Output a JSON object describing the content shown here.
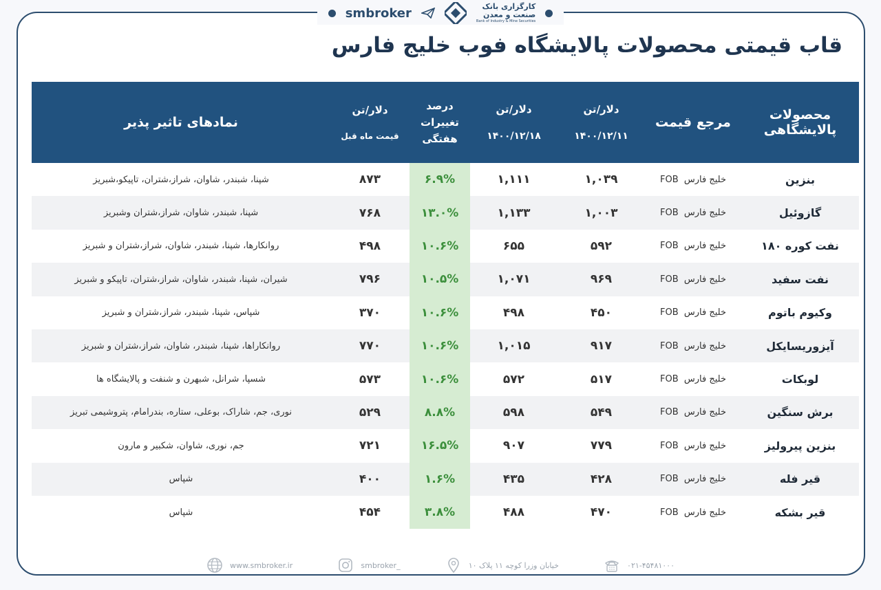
{
  "brand": {
    "name": "smbroker",
    "bank_name_line1": "کارگزاری بانک",
    "bank_name_line2": "صنعت و معدن",
    "bank_name_en": "Bank of Industry & Mine Securities"
  },
  "title": "قاب قیمتی محصولات پالایشگاه فوب خلیج فارس",
  "table": {
    "headers": {
      "product": "محصولات پالایشگاهی",
      "reference": "مرجع قیمت",
      "price1_unit": "دلار/تن",
      "price1_date": "۱۴۰۰/۱۲/۱۱",
      "price2_unit": "دلار/تن",
      "price2_date": "۱۴۰۰/۱۲/۱۸",
      "change_line1": "درصد",
      "change_line2": "تغییرات",
      "change_line3": "هفتگی",
      "prev_unit": "دلار/تن",
      "prev_label": "قیمت ماه قبل",
      "symbols": "نمادهای تاثیر پذیر"
    },
    "rows": [
      {
        "product": "بنزین",
        "ref_code": "FOB",
        "ref_name": "خلیج فارس",
        "p1": "۱,۰۳۹",
        "p2": "۱,۱۱۱",
        "change": "۶.۹%",
        "prev": "۸۷۳",
        "symbols": "شپنا، شبندر، شاوان، شراز،شتران، تاپیکو،شبریز"
      },
      {
        "product": "گازوئیل",
        "ref_code": "FOB",
        "ref_name": "خلیج فارس",
        "p1": "۱,۰۰۳",
        "p2": "۱,۱۳۳",
        "change": "۱۳.۰%",
        "prev": "۷۶۸",
        "symbols": "شپنا، شبندر، شاوان، شراز،شتران وشبریز"
      },
      {
        "product": "نفت کوره ۱۸۰",
        "ref_code": "FOB",
        "ref_name": "خلیج فارس",
        "p1": "۵۹۲",
        "p2": "۶۵۵",
        "change": "۱۰.۶%",
        "prev": "۴۹۸",
        "symbols": "روانکارها، شپنا، شبندر، شاوان، شراز،شتران و شبریز"
      },
      {
        "product": "نفت سفید",
        "ref_code": "FOB",
        "ref_name": "خلیج فارس",
        "p1": "۹۶۹",
        "p2": "۱,۰۷۱",
        "change": "۱۰.۵%",
        "prev": "۷۹۶",
        "symbols": "شیران، شپنا، شبندر، شاوان، شراز،شتران، تاپیکو و شبریز"
      },
      {
        "product": "وکیوم  باتوم",
        "ref_code": "FOB",
        "ref_name": "خلیج فارس",
        "p1": "۴۵۰",
        "p2": "۴۹۸",
        "change": "۱۰.۶%",
        "prev": "۳۷۰",
        "symbols": "شپاس، شپنا، شبندر، شراز،شتران و شبریز"
      },
      {
        "product": "آیزوریسایکل",
        "ref_code": "FOB",
        "ref_name": "خلیج فارس",
        "p1": "۹۱۷",
        "p2": "۱,۰۱۵",
        "change": "۱۰.۶%",
        "prev": "۷۷۰",
        "symbols": "روانکاراها، شپنا، شبندر، شاوان، شراز،شتران و شبریز"
      },
      {
        "product": "لوبکات",
        "ref_code": "FOB",
        "ref_name": "خلیج فارس",
        "p1": "۵۱۷",
        "p2": "۵۷۲",
        "change": "۱۰.۶%",
        "prev": "۵۷۳",
        "symbols": "شسپا، شرانل، شبهرن و شنفت و پالایشگاه ها"
      },
      {
        "product": "برش سنگین",
        "ref_code": "FOB",
        "ref_name": "خلیج فارس",
        "p1": "۵۴۹",
        "p2": "۵۹۸",
        "change": "۸.۸%",
        "prev": "۵۲۹",
        "symbols": "نوری، جم، شاراک، بوعلی، ستاره، بندرامام، پتروشیمی تبریز"
      },
      {
        "product": "بنزین پیرولیز",
        "ref_code": "FOB",
        "ref_name": "خلیج فارس",
        "p1": "۷۷۹",
        "p2": "۹۰۷",
        "change": "۱۶.۵%",
        "prev": "۷۲۱",
        "symbols": "جم، نوری، شاوان، شکبیر و مارون"
      },
      {
        "product": "قیر فله",
        "ref_code": "FOB",
        "ref_name": "خلیج فارس",
        "p1": "۴۲۸",
        "p2": "۴۳۵",
        "change": "۱.۶%",
        "prev": "۴۰۰",
        "symbols": "شپاس"
      },
      {
        "product": "قیر بشکه",
        "ref_code": "FOB",
        "ref_name": "خلیج فارس",
        "p1": "۴۷۰",
        "p2": "۴۸۸",
        "change": "۳.۸%",
        "prev": "۴۵۴",
        "symbols": "شپاس"
      }
    ]
  },
  "footer": {
    "website": "www.smbroker.ir",
    "instagram": "smbroker_",
    "address": "خیابان وزرا کوچه ۱۱ پلاک ۱۰",
    "phone": "۰۲۱-۴۵۴۸۱۰۰۰"
  },
  "colors": {
    "header_bg": "#21527f",
    "frame": "#2c4d6e",
    "change_bg": "#d6ecd2",
    "change_text": "#3c8f3c"
  },
  "icons": [
    "logo-icon",
    "plane-icon",
    "globe-icon",
    "instagram-icon",
    "location-icon",
    "phone-icon"
  ]
}
